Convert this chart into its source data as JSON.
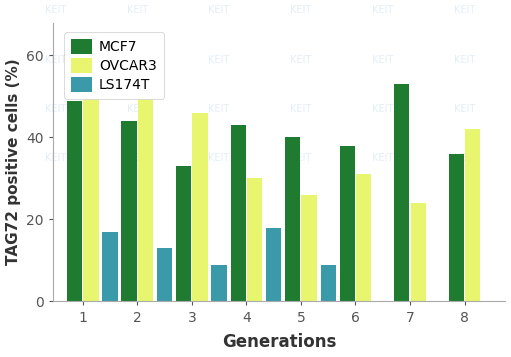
{
  "generations": [
    1,
    2,
    3,
    4,
    5,
    6,
    7,
    8
  ],
  "MCF7": [
    49,
    44,
    33,
    43,
    40,
    38,
    53,
    36
  ],
  "OVCAR3": [
    50,
    50,
    46,
    30,
    26,
    31,
    24,
    42
  ],
  "LS174T": [
    17,
    13,
    9,
    18,
    9,
    0,
    0,
    0
  ],
  "colors": {
    "MCF7": "#1e7b30",
    "OVCAR3": "#e8f56e",
    "LS174T": "#3a9aaa"
  },
  "ylabel": "TAG72 positive cells (%)",
  "xlabel": "Generations",
  "ylim": [
    0,
    68
  ],
  "yticks": [
    0,
    20,
    40,
    60
  ],
  "bar_width": 0.28,
  "figsize": [
    5.11,
    3.57
  ],
  "dpi": 100,
  "label_fontsize": 12,
  "legend_fontsize": 10,
  "tick_fontsize": 10,
  "axis_color": "#555555"
}
